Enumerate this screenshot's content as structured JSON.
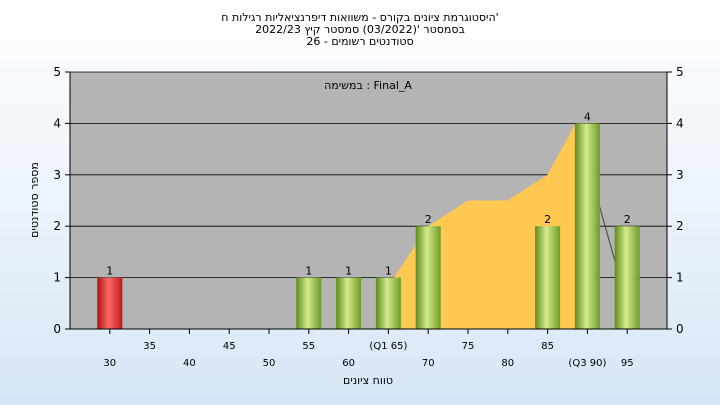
{
  "chart_data": {
    "type": "bar",
    "title_lines": [
      "היסטוגרמת ציונים בקורס - משוואות דיפרנציאליות רגילות ח'",
      "בסמסטר '(03/2022)  סמסטר קיץ 2022/23",
      "סטודנטים רשומים - 26"
    ],
    "annotation": "במשימה : Final_A",
    "xlabel": "טווח ציונים",
    "ylabel": "מספר סטודנטים",
    "ylim": [
      0,
      5
    ],
    "yticks": [
      0,
      1,
      2,
      3,
      4,
      5
    ],
    "xlim": [
      25,
      100
    ],
    "upper_ticks": [
      {
        "x": 35,
        "label": "35"
      },
      {
        "x": 45,
        "label": "45"
      },
      {
        "x": 55,
        "label": "55"
      },
      {
        "x": 65,
        "label": "(Q1 65)"
      },
      {
        "x": 75,
        "label": "75"
      },
      {
        "x": 85,
        "label": "85"
      }
    ],
    "lower_ticks": [
      {
        "x": 30,
        "label": "30"
      },
      {
        "x": 40,
        "label": "40"
      },
      {
        "x": 50,
        "label": "50"
      },
      {
        "x": 60,
        "label": "60"
      },
      {
        "x": 70,
        "label": "70"
      },
      {
        "x": 80,
        "label": "80"
      },
      {
        "x": 90,
        "label": "(Q3 90)"
      },
      {
        "x": 95,
        "label": "95"
      }
    ],
    "bars": [
      {
        "x": 30,
        "value": 1,
        "color": "red"
      },
      {
        "x": 55,
        "value": 1,
        "color": "green"
      },
      {
        "x": 60,
        "value": 1,
        "color": "green"
      },
      {
        "x": 65,
        "value": 1,
        "color": "green"
      },
      {
        "x": 70,
        "value": 2,
        "color": "green"
      },
      {
        "x": 85,
        "value": 2,
        "color": "green"
      },
      {
        "x": 90,
        "value": 4,
        "color": "green"
      },
      {
        "x": 95,
        "value": 2,
        "color": "green"
      }
    ],
    "cumulative_area": {
      "color": "#ffc850",
      "points": [
        [
          64,
          0.6
        ],
        [
          70,
          2.0
        ],
        [
          75,
          2.5
        ],
        [
          80,
          2.5
        ],
        [
          85,
          3.0
        ],
        [
          88.5,
          4.0
        ],
        [
          89.5,
          4.0
        ]
      ]
    },
    "trend_line": {
      "color": "#404040",
      "points": [
        [
          89.5,
          3.5
        ],
        [
          93.5,
          1.3
        ]
      ]
    },
    "colors": {
      "plot_bg": "#b4b4b4",
      "red_bar": "#e02020",
      "green_bar": "#8ab83a"
    }
  }
}
